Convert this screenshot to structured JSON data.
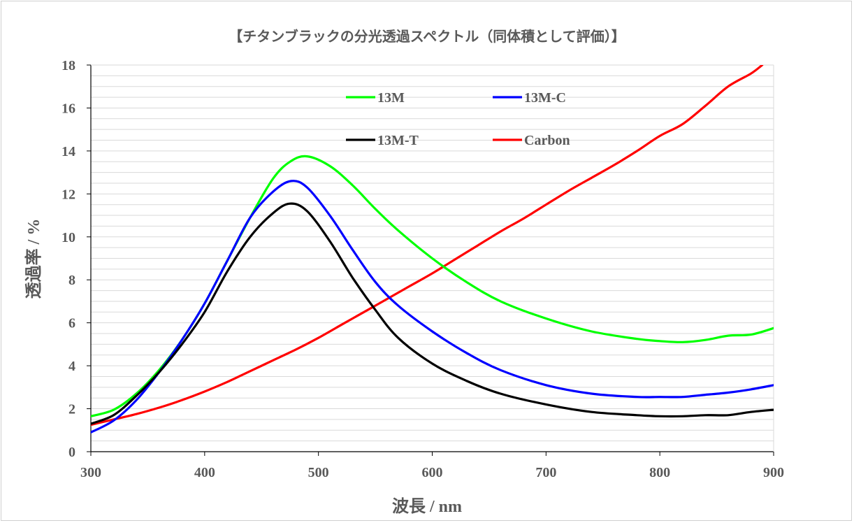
{
  "colors": {
    "13M": "#00ff00",
    "13M-C": "#0000ff",
    "13M-T": "#000000",
    "Carbon": "#ff0000",
    "grid": "#d9d9d9",
    "axis": "#000000",
    "label": "#595959"
  },
  "chart_data": {
    "type": "line",
    "title": "【チタンブラックの分光透過スペクトル（同体積として評価）】",
    "xlabel": "波長 / nm",
    "ylabel": "透過率 / %",
    "xlim": [
      300,
      900
    ],
    "ylim": [
      0,
      18
    ],
    "xticks": [
      300,
      400,
      500,
      600,
      700,
      800,
      900
    ],
    "yticks": [
      0,
      2,
      4,
      6,
      8,
      10,
      12,
      14,
      16,
      18
    ],
    "ytick_labels": [
      "0",
      "2",
      "4",
      "6",
      "8",
      "10",
      "12",
      "14",
      "16",
      "18"
    ],
    "xtick_labels": [
      "300",
      "400",
      "500",
      "600",
      "700",
      "800",
      "900"
    ],
    "grid": "horizontal minor gridlines every 0.5",
    "legend": "inside upper area, two columns",
    "series": [
      {
        "name": "13M",
        "x": [
          300,
          320,
          340,
          360,
          380,
          400,
          420,
          440,
          460,
          475,
          490,
          510,
          530,
          550,
          570,
          600,
          630,
          660,
          700,
          740,
          780,
          800,
          820,
          840,
          860,
          880,
          900
        ],
        "y": [
          1.65,
          1.95,
          2.7,
          3.8,
          5.2,
          6.9,
          8.9,
          10.9,
          12.7,
          13.5,
          13.75,
          13.3,
          12.4,
          11.3,
          10.3,
          9.0,
          7.9,
          7.0,
          6.2,
          5.6,
          5.25,
          5.15,
          5.1,
          5.2,
          5.4,
          5.45,
          5.75
        ]
      },
      {
        "name": "13M-C",
        "x": [
          300,
          320,
          340,
          360,
          380,
          400,
          420,
          440,
          460,
          476,
          490,
          510,
          530,
          550,
          570,
          600,
          630,
          660,
          700,
          740,
          780,
          800,
          820,
          840,
          860,
          880,
          900
        ],
        "y": [
          0.9,
          1.45,
          2.4,
          3.7,
          5.2,
          6.9,
          8.9,
          10.9,
          12.1,
          12.6,
          12.3,
          11.0,
          9.4,
          7.9,
          6.8,
          5.6,
          4.6,
          3.8,
          3.1,
          2.7,
          2.55,
          2.55,
          2.55,
          2.65,
          2.75,
          2.9,
          3.1
        ]
      },
      {
        "name": "13M-T",
        "x": [
          300,
          320,
          340,
          360,
          380,
          400,
          420,
          440,
          460,
          475,
          490,
          510,
          530,
          550,
          570,
          600,
          630,
          660,
          700,
          740,
          780,
          800,
          820,
          840,
          860,
          880,
          900
        ],
        "y": [
          1.3,
          1.7,
          2.6,
          3.7,
          5.0,
          6.5,
          8.4,
          10.0,
          11.1,
          11.55,
          11.2,
          9.8,
          8.1,
          6.6,
          5.3,
          4.1,
          3.3,
          2.7,
          2.2,
          1.85,
          1.7,
          1.65,
          1.65,
          1.7,
          1.7,
          1.85,
          1.95
        ]
      },
      {
        "name": "Carbon",
        "x": [
          300,
          320,
          340,
          360,
          380,
          400,
          420,
          440,
          460,
          480,
          500,
          520,
          540,
          560,
          580,
          600,
          620,
          640,
          660,
          680,
          700,
          720,
          740,
          760,
          780,
          800,
          820,
          840,
          860,
          880,
          890
        ],
        "y": [
          1.25,
          1.5,
          1.75,
          2.05,
          2.4,
          2.8,
          3.25,
          3.75,
          4.25,
          4.75,
          5.3,
          5.9,
          6.5,
          7.1,
          7.7,
          8.3,
          8.95,
          9.6,
          10.25,
          10.85,
          11.5,
          12.15,
          12.75,
          13.35,
          14.0,
          14.7,
          15.25,
          16.1,
          17.0,
          17.6,
          18.0
        ]
      }
    ]
  }
}
